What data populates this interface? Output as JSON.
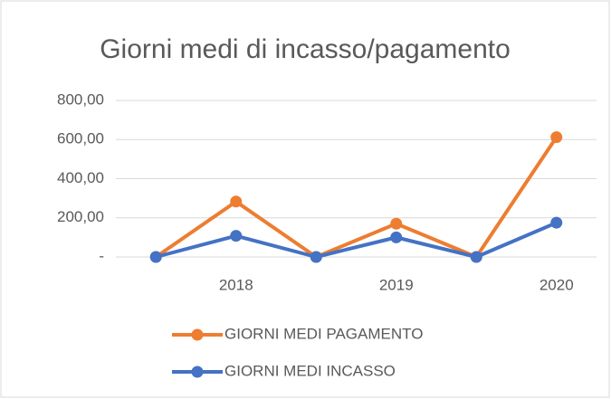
{
  "chart_data": {
    "type": "line",
    "title": "Giorni medi di incasso/pagamento",
    "categories": [
      null,
      "2018",
      null,
      "2019",
      null,
      "2020"
    ],
    "series": [
      {
        "name": "GIORNI MEDI PAGAMENTO",
        "color": "#ed7d31",
        "values": [
          0,
          283,
          0,
          170,
          0,
          612
        ]
      },
      {
        "name": "GIORNI MEDI INCASSO",
        "color": "#4472c4",
        "values": [
          0,
          108,
          0,
          100,
          0,
          175
        ]
      }
    ],
    "ylim": [
      0,
      800
    ],
    "yticks": [
      {
        "value": 0,
        "label": "-"
      },
      {
        "value": 200,
        "label": "200,00"
      },
      {
        "value": 400,
        "label": "400,00"
      },
      {
        "value": 600,
        "label": "600,00"
      },
      {
        "value": 800,
        "label": "800,00"
      }
    ],
    "grid": true,
    "legend": "bottom"
  }
}
